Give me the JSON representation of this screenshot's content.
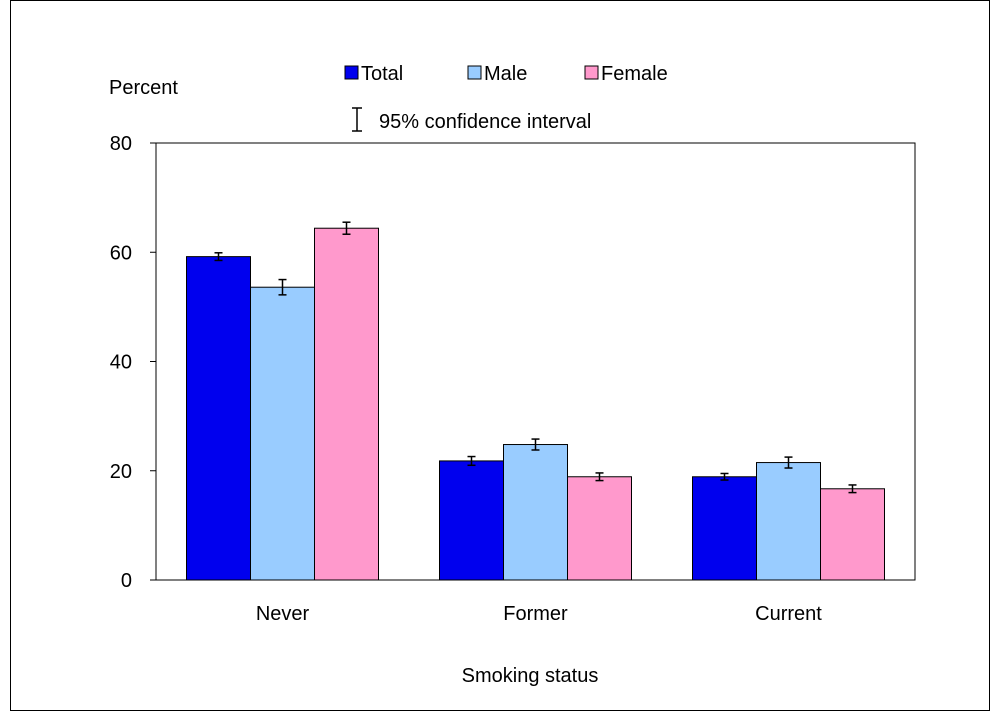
{
  "chart_data": {
    "type": "bar",
    "categories": [
      "Never",
      "Former",
      "Current"
    ],
    "series": [
      {
        "name": "Total",
        "color": "#0000ee",
        "values": [
          59.2,
          21.8,
          18.9
        ],
        "ci_lower": [
          58.5,
          21.0,
          18.3
        ],
        "ci_upper": [
          59.9,
          22.6,
          19.5
        ]
      },
      {
        "name": "Male",
        "color": "#99ccff",
        "values": [
          53.6,
          24.8,
          21.5
        ],
        "ci_lower": [
          52.2,
          23.8,
          20.5
        ],
        "ci_upper": [
          55.0,
          25.8,
          22.5
        ]
      },
      {
        "name": "Female",
        "color": "#ff99cc",
        "values": [
          64.4,
          18.9,
          16.7
        ],
        "ci_lower": [
          63.3,
          18.2,
          16.0
        ],
        "ci_upper": [
          65.5,
          19.6,
          17.4
        ]
      }
    ],
    "ylabel": "Percent",
    "xlabel": "Smoking status",
    "ylim": [
      0,
      80
    ],
    "yticks": [
      0,
      20,
      40,
      60,
      80
    ],
    "legend": {
      "position": "top",
      "ci_label": "95% confidence interval"
    },
    "grid": false
  }
}
